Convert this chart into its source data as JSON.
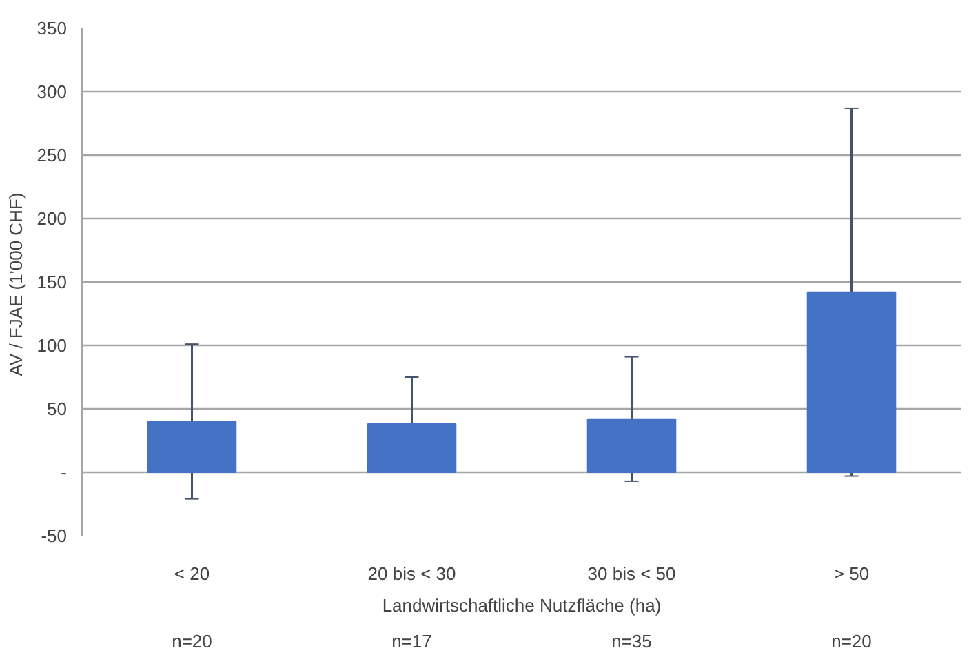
{
  "chart_data": {
    "type": "bar",
    "xlabel": "Landwirtschaftliche Nutzfläche (ha)",
    "ylabel": "AV / FJAE  (1'000 CHF)",
    "categories": [
      "< 20",
      "20 bis < 30",
      "30 bis < 50",
      "> 50"
    ],
    "values": [
      40,
      38,
      42,
      142
    ],
    "errors": [
      61,
      37,
      49,
      145
    ],
    "color": "#4472c4",
    "ylim": [
      -50,
      350
    ],
    "yticks": [
      -50,
      {
        "value": 0,
        "label": "-"
      },
      50,
      100,
      150,
      200,
      250,
      300,
      350
    ],
    "grid": "y",
    "annotations": [
      "n=20",
      "n=17",
      "n=35",
      "n=20"
    ]
  }
}
